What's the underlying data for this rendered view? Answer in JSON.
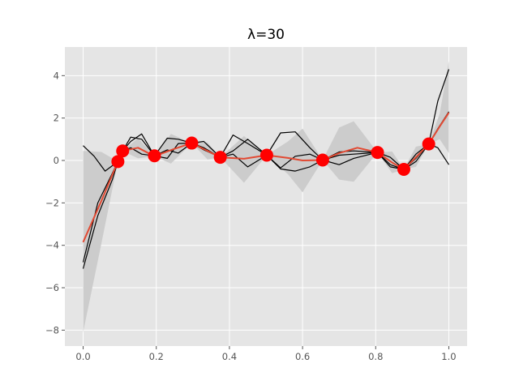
{
  "chart_data": {
    "type": "line",
    "title": "λ=30",
    "xlabel": "",
    "ylabel": "",
    "xlim": [
      -0.05,
      1.05
    ],
    "ylim": [
      -8.75,
      5.35
    ],
    "grid": true,
    "x_ticks": [
      0.0,
      0.2,
      0.4,
      0.6,
      0.8,
      1.0
    ],
    "x_tick_labels": [
      "0.0",
      "0.2",
      "0.4",
      "0.6",
      "0.8",
      "1.0"
    ],
    "y_ticks": [
      -8,
      -6,
      -4,
      -2,
      0,
      2,
      4
    ],
    "y_tick_labels": [
      "−8",
      "−6",
      "−4",
      "−2",
      "0",
      "2",
      "4"
    ],
    "colors": {
      "background": "#e5e5e5",
      "grid": "#ffffff",
      "band": "#cccccc",
      "mean": "#e24a33",
      "samples": "#000000",
      "points": "#ff0000"
    },
    "points": {
      "x": [
        0.095,
        0.108,
        0.195,
        0.297,
        0.375,
        0.502,
        0.655,
        0.805,
        0.877,
        0.945
      ],
      "y": [
        -0.05,
        0.45,
        0.22,
        0.82,
        0.15,
        0.25,
        0.02,
        0.38,
        -0.42,
        0.78
      ]
    },
    "mean": {
      "x": [
        0.0,
        0.05,
        0.095,
        0.108,
        0.15,
        0.195,
        0.25,
        0.297,
        0.34,
        0.375,
        0.44,
        0.502,
        0.56,
        0.6,
        0.655,
        0.7,
        0.75,
        0.805,
        0.845,
        0.877,
        0.91,
        0.945,
        0.975,
        1.0
      ],
      "y": [
        -3.85,
        -1.9,
        -0.05,
        0.45,
        0.6,
        0.2,
        0.55,
        0.82,
        0.45,
        0.15,
        0.08,
        0.25,
        0.12,
        0.0,
        0.02,
        0.35,
        0.6,
        0.38,
        -0.1,
        -0.42,
        0.15,
        0.78,
        1.6,
        2.25
      ]
    },
    "band": {
      "x": [
        0.0,
        0.05,
        0.095,
        0.108,
        0.15,
        0.195,
        0.24,
        0.297,
        0.34,
        0.375,
        0.44,
        0.502,
        0.56,
        0.6,
        0.655,
        0.7,
        0.74,
        0.805,
        0.845,
        0.877,
        0.91,
        0.945,
        0.975,
        1.0
      ],
      "lower": [
        -8.1,
        -3.9,
        -0.05,
        0.45,
        0.1,
        0.2,
        -0.15,
        0.82,
        0.05,
        0.15,
        -1.05,
        0.25,
        -0.65,
        -1.5,
        0.02,
        -0.9,
        -1.0,
        0.38,
        -0.6,
        -0.42,
        -0.3,
        0.78,
        1.0,
        0.35
      ],
      "upper": [
        0.45,
        0.4,
        -0.05,
        0.45,
        1.05,
        0.2,
        1.25,
        0.82,
        0.85,
        0.15,
        1.15,
        0.25,
        0.9,
        1.5,
        0.02,
        1.55,
        1.85,
        0.38,
        0.42,
        -0.42,
        0.65,
        0.78,
        2.2,
        4.7
      ]
    },
    "samples": [
      {
        "x": [
          0.0,
          0.03,
          0.06,
          0.095,
          0.108,
          0.13,
          0.16,
          0.195,
          0.23,
          0.26,
          0.297,
          0.33,
          0.375,
          0.41,
          0.45,
          0.502,
          0.54,
          0.58,
          0.62,
          0.655,
          0.7,
          0.74,
          0.805,
          0.84,
          0.877,
          0.91,
          0.945,
          0.97,
          1.0
        ],
        "y": [
          0.7,
          0.2,
          -0.5,
          -0.05,
          0.45,
          0.6,
          0.3,
          0.22,
          0.5,
          0.35,
          0.82,
          0.9,
          0.15,
          0.45,
          1.0,
          0.25,
          -0.4,
          -0.5,
          -0.3,
          0.02,
          0.25,
          0.3,
          0.38,
          0.15,
          -0.42,
          0.1,
          0.78,
          0.6,
          -0.2
        ]
      },
      {
        "x": [
          0.0,
          0.04,
          0.08,
          0.095,
          0.108,
          0.13,
          0.16,
          0.195,
          0.23,
          0.26,
          0.297,
          0.33,
          0.375,
          0.41,
          0.45,
          0.502,
          0.54,
          0.58,
          0.62,
          0.655,
          0.7,
          0.74,
          0.805,
          0.84,
          0.877,
          0.91,
          0.945,
          0.97,
          1.0
        ],
        "y": [
          -4.8,
          -2.0,
          -0.6,
          -0.05,
          0.45,
          1.1,
          1.0,
          0.22,
          1.05,
          1.0,
          0.82,
          0.6,
          0.15,
          1.2,
          0.8,
          0.25,
          1.3,
          1.35,
          0.6,
          0.02,
          -0.2,
          0.1,
          0.38,
          -0.2,
          -0.42,
          0.3,
          0.78,
          2.8,
          4.3
        ]
      },
      {
        "x": [
          0.0,
          0.04,
          0.08,
          0.095,
          0.108,
          0.13,
          0.16,
          0.195,
          0.23,
          0.26,
          0.297,
          0.33,
          0.375,
          0.41,
          0.45,
          0.502,
          0.54,
          0.58,
          0.62,
          0.655,
          0.7,
          0.74,
          0.805,
          0.84,
          0.877,
          0.91,
          0.945,
          0.97,
          1.0
        ],
        "y": [
          -5.1,
          -2.6,
          -0.9,
          -0.05,
          0.45,
          0.9,
          1.25,
          0.22,
          0.1,
          0.8,
          0.82,
          0.5,
          0.15,
          0.3,
          -0.3,
          0.25,
          -0.35,
          0.2,
          0.3,
          0.02,
          0.4,
          0.45,
          0.38,
          -0.3,
          -0.42,
          -0.05,
          0.78,
          1.5,
          2.3
        ]
      }
    ]
  }
}
